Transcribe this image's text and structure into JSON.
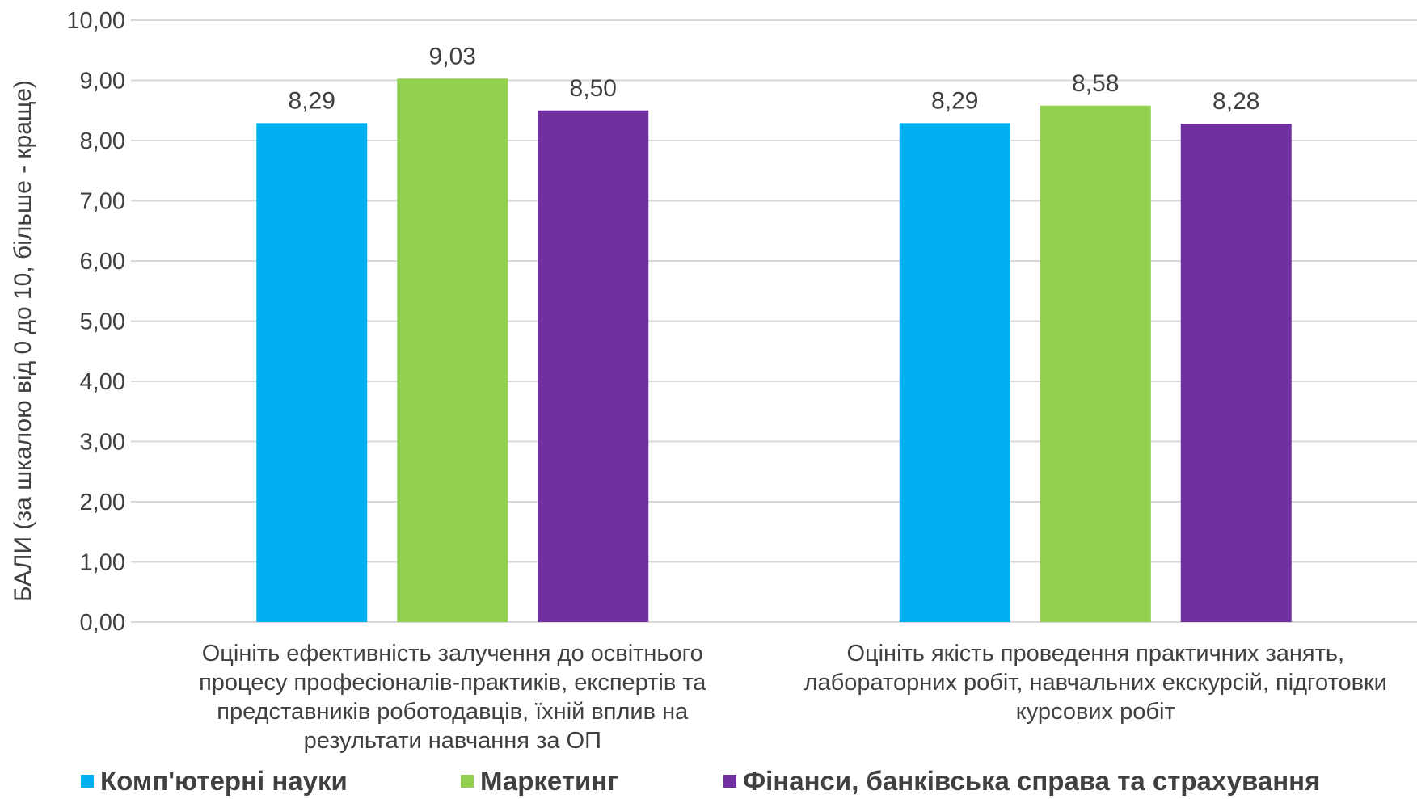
{
  "chart_data": {
    "type": "bar",
    "categories": [
      [
        "Оцініть ефективність залучення до освітнього",
        "процесу професіоналів-практиків,  експертів та",
        "представників  роботодавців, їхній вплив  на",
        "результати навчання за ОП"
      ],
      [
        "Оцініть якість проведення практичних  занять,",
        "лабораторних робіт, навчальних екскурсій, підготовки",
        "курсових робіт"
      ]
    ],
    "series": [
      {
        "name": "Комп'ютерні науки",
        "color": "#00B0F0",
        "values": [
          8.29,
          8.29
        ],
        "labels": [
          "8,29",
          "8,29"
        ]
      },
      {
        "name": "Маркетинг",
        "color": "#92D050",
        "values": [
          9.03,
          8.58
        ],
        "labels": [
          "9,03",
          "8,58"
        ]
      },
      {
        "name": "Фінанси, банківська справа та страхування",
        "color": "#7030A0",
        "values": [
          8.5,
          8.28
        ],
        "labels": [
          "8,50",
          "8,28"
        ]
      }
    ],
    "ylabel": "БАЛИ (за шкалою від 0 до 10, більше - краще)",
    "ylim": [
      0,
      10
    ],
    "yticks": [
      "0,00",
      "1,00",
      "2,00",
      "3,00",
      "4,00",
      "5,00",
      "6,00",
      "7,00",
      "8,00",
      "9,00",
      "10,00"
    ],
    "grid": true,
    "legend_position": "bottom",
    "gridline_color": "#D9D9D9"
  }
}
